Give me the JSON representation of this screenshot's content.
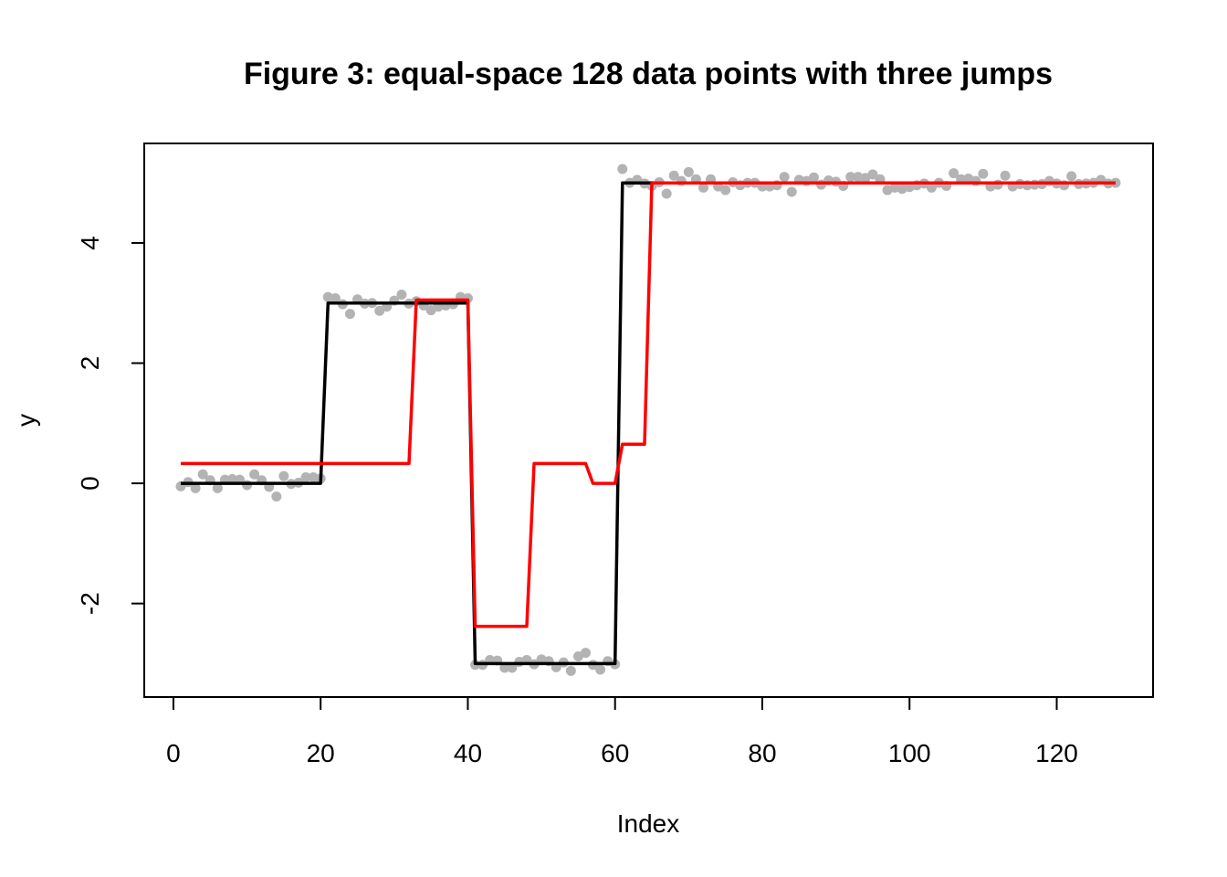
{
  "chart_data": {
    "type": "scatter",
    "title": "Figure 3: equal-space 128 data points with three jumps",
    "xlabel": "Index",
    "ylabel": "y",
    "xlim": [
      1,
      128
    ],
    "ylim": [
      -3.1,
      5.2
    ],
    "x_ticks": [
      0,
      20,
      40,
      60,
      80,
      100,
      120
    ],
    "y_ticks": [
      -2,
      0,
      2,
      4
    ],
    "x_tick_labels": [
      "0",
      "20",
      "40",
      "60",
      "80",
      "100",
      "120"
    ],
    "y_tick_labels": [
      "-2",
      "0",
      "2",
      "4"
    ],
    "grid": false,
    "legend": "none",
    "colors": {
      "points": "#b3b3b3",
      "true_signal": "#000000",
      "estimate": "#ff0000"
    },
    "points_y": [
      -0.05,
      0.02,
      -0.08,
      0.15,
      0.05,
      -0.08,
      0.06,
      0.07,
      0.06,
      -0.03,
      0.15,
      0.05,
      -0.06,
      -0.22,
      0.12,
      -0.01,
      0.01,
      0.1,
      0.1,
      0.08,
      3.1,
      3.08,
      2.98,
      2.82,
      3.06,
      2.99,
      3.0,
      2.87,
      2.94,
      3.04,
      3.14,
      2.99,
      3.03,
      2.96,
      2.88,
      2.94,
      2.96,
      2.98,
      3.1,
      3.08,
      -3.02,
      -3.02,
      -2.94,
      -2.95,
      -3.07,
      -3.07,
      -2.97,
      -2.94,
      -3.01,
      -2.93,
      -2.96,
      -3.06,
      -2.98,
      -3.12,
      -2.88,
      -2.82,
      -3.02,
      -3.1,
      -2.96,
      -3.01,
      5.23,
      5.0,
      5.05,
      4.99,
      4.95,
      5.01,
      4.82,
      5.12,
      5.03,
      5.18,
      5.06,
      4.92,
      5.06,
      4.94,
      4.88,
      5.01,
      4.96,
      5.0,
      5.0,
      4.94,
      4.94,
      4.96,
      5.1,
      4.85,
      5.05,
      5.03,
      5.09,
      4.97,
      5.04,
      5.02,
      4.95,
      5.1,
      5.1,
      5.08,
      5.14,
      5.06,
      4.88,
      4.92,
      4.9,
      4.93,
      4.96,
      4.99,
      4.92,
      5.0,
      4.95,
      5.16,
      5.06,
      5.07,
      5.03,
      5.15,
      4.94,
      4.97,
      5.12,
      4.94,
      4.98,
      4.96,
      4.97,
      4.98,
      5.03,
      4.99,
      4.96,
      5.11,
      4.98,
      4.99,
      5.0,
      5.05,
      4.99,
      5.0
    ],
    "series": [
      {
        "x": [
          1,
          20,
          21,
          40,
          41,
          60,
          61,
          128
        ],
        "y": [
          0,
          0,
          3,
          3,
          -3,
          -3,
          5,
          5
        ]
      },
      {
        "x": [
          1,
          32,
          33,
          40,
          41,
          48,
          49,
          56,
          57,
          60,
          61,
          64,
          65,
          128
        ],
        "y": [
          0.33,
          0.33,
          3.05,
          3.05,
          -2.38,
          -2.38,
          0.33,
          0.33,
          0.0,
          0.0,
          0.65,
          0.65,
          5.0,
          5.0
        ]
      }
    ]
  }
}
